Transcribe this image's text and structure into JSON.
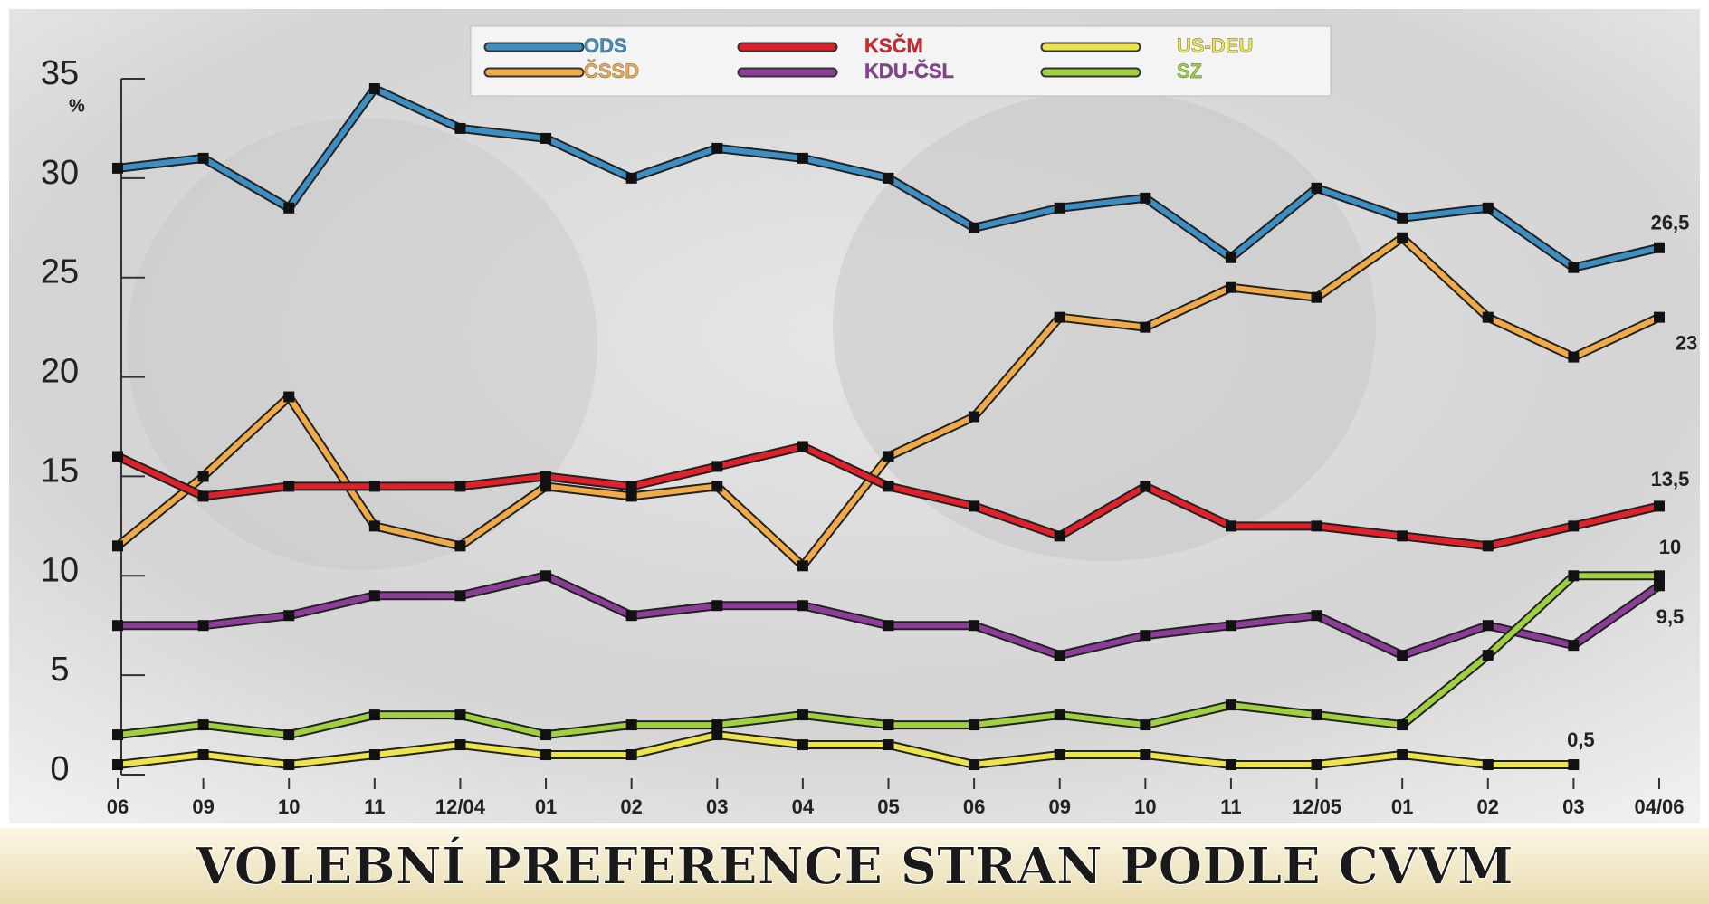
{
  "chart_data": {
    "type": "line",
    "title": "VOLEBNÍ PREFERENCE STRAN PODLE CVVM",
    "y_unit": "%",
    "categories": [
      "06",
      "09",
      "10",
      "11",
      "12/04",
      "01",
      "02",
      "03",
      "04",
      "05",
      "06",
      "09",
      "10",
      "11",
      "12/05",
      "01",
      "02",
      "03",
      "04/06"
    ],
    "ylim": [
      0,
      35
    ],
    "yticks": [
      0,
      5,
      10,
      15,
      20,
      25,
      30,
      35
    ],
    "series": [
      {
        "name": "ODS",
        "color": "#3d8ec3",
        "values": [
          30.5,
          31,
          28.5,
          34.5,
          32.5,
          32,
          30,
          31.5,
          31,
          30,
          27.5,
          28.5,
          29,
          26,
          29.5,
          28,
          28.5,
          25.5,
          26.5
        ],
        "value_labels": [
          null,
          null,
          null,
          null,
          null,
          null,
          null,
          null,
          null,
          null,
          null,
          null,
          null,
          null,
          null,
          null,
          null,
          null,
          "26,5"
        ]
      },
      {
        "name": "ČSSD",
        "color": "#f0aa48",
        "values": [
          11.5,
          15,
          19,
          12.5,
          11.5,
          14.5,
          14,
          14.5,
          10.5,
          16,
          18,
          23,
          22.5,
          24.5,
          24,
          27,
          23,
          21,
          23
        ],
        "value_labels": [
          null,
          null,
          null,
          null,
          null,
          null,
          null,
          null,
          null,
          null,
          null,
          null,
          null,
          null,
          null,
          null,
          null,
          null,
          "23"
        ]
      },
      {
        "name": "KSČM",
        "color": "#e0202a",
        "values": [
          16,
          14,
          14.5,
          14.5,
          14.5,
          15,
          14.5,
          15.5,
          16.5,
          14.5,
          13.5,
          12,
          14.5,
          12.5,
          12.5,
          12,
          11.5,
          12.5,
          13.5
        ],
        "value_labels": [
          null,
          null,
          null,
          null,
          null,
          null,
          null,
          null,
          null,
          null,
          null,
          null,
          null,
          null,
          null,
          null,
          null,
          null,
          "13,5"
        ]
      },
      {
        "name": "KDU-ČSL",
        "color": "#8c3d98",
        "values": [
          7.5,
          7.5,
          8,
          9,
          9,
          10,
          8,
          8.5,
          8.5,
          7.5,
          7.5,
          6,
          7,
          7.5,
          8,
          6,
          7.5,
          6.5,
          9.5
        ],
        "value_labels": [
          null,
          null,
          null,
          null,
          null,
          null,
          null,
          null,
          null,
          null,
          null,
          null,
          null,
          null,
          null,
          null,
          null,
          null,
          "9,5"
        ]
      },
      {
        "name": "US-DEU",
        "color": "#ece44a",
        "values": [
          0.5,
          1,
          0.5,
          1,
          1.5,
          1,
          1,
          2,
          1.5,
          1.5,
          0.5,
          1,
          1,
          0.5,
          0.5,
          1,
          0.5,
          0.5,
          null
        ],
        "value_labels": [
          null,
          null,
          null,
          null,
          null,
          null,
          null,
          null,
          null,
          null,
          null,
          null,
          null,
          null,
          null,
          null,
          null,
          "0,5",
          null
        ]
      },
      {
        "name": "SZ",
        "color": "#a0d040",
        "values": [
          2,
          2.5,
          2,
          3,
          3,
          2,
          2.5,
          2.5,
          3,
          2.5,
          2.5,
          3,
          2.5,
          3.5,
          3,
          2.5,
          6,
          10,
          10
        ],
        "value_labels": [
          null,
          null,
          null,
          null,
          null,
          null,
          null,
          null,
          null,
          null,
          null,
          null,
          null,
          null,
          null,
          null,
          null,
          null,
          "10"
        ]
      }
    ]
  }
}
